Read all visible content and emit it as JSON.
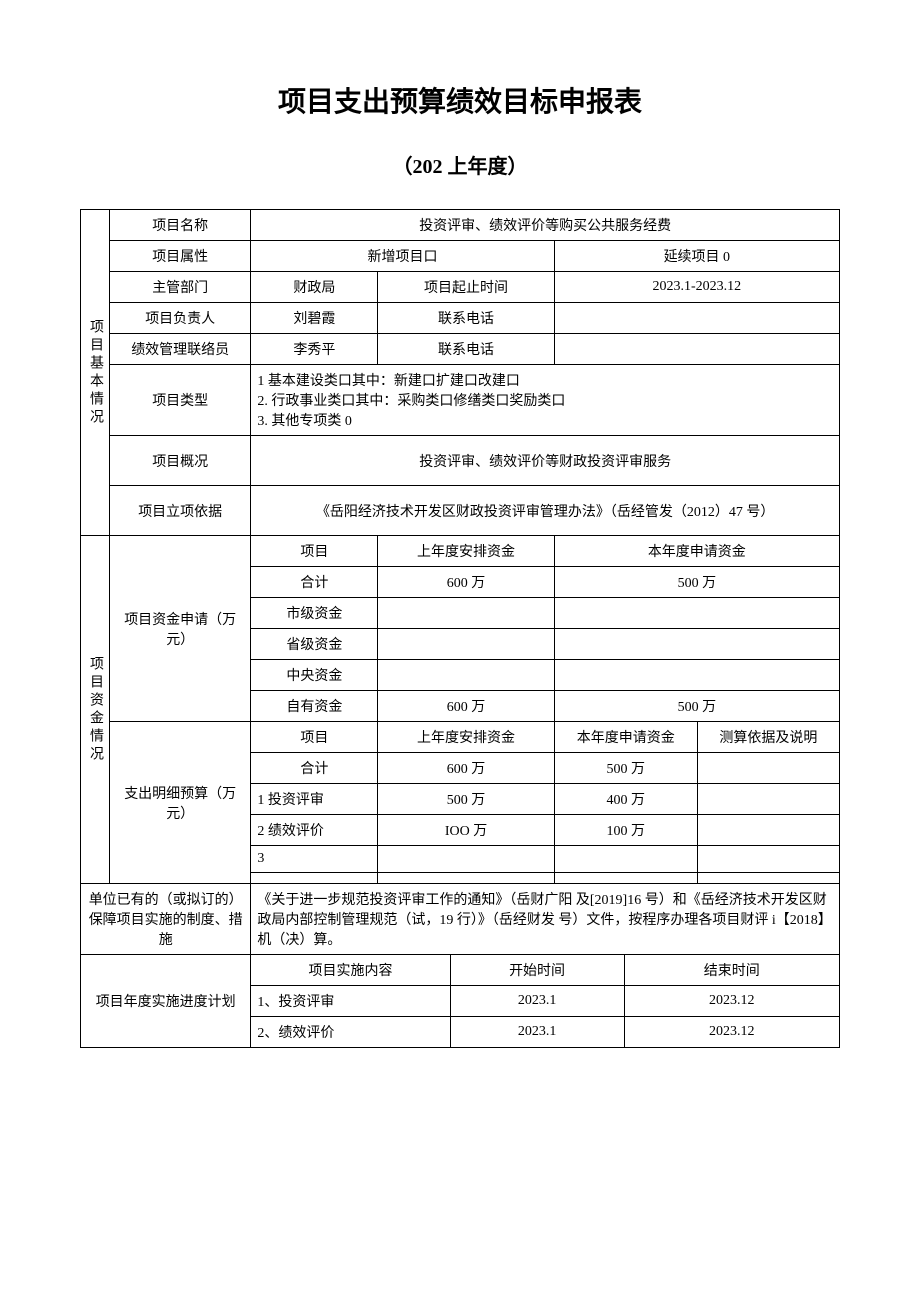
{
  "title": "项目支出预算绩效目标申报表",
  "subtitle": "（202 上年度）",
  "section1_label": "项目基本情况",
  "section2_label": "项目资金情况",
  "rows": {
    "proj_name_label": "项目名称",
    "proj_name": "投资评审、绩效评价等购买公共服务经费",
    "proj_attr_label": "项目属性",
    "proj_attr_new": "新增项目口",
    "proj_attr_cont": "延续项目 0",
    "dept_label": "主管部门",
    "dept": "财政局",
    "period_label": "项目起止时间",
    "period": "2023.1-2023.12",
    "leader_label": "项目负责人",
    "leader": "刘碧霞",
    "leader_phone_label": "联系电话",
    "leader_phone": "",
    "contact_label": "绩效管理联络员",
    "contact": "李秀平",
    "contact_phone_label": "联系电话",
    "contact_phone": "",
    "type_label": "项目类型",
    "type_text": "1 基本建设类口其中：新建口扩建口改建口\n2. 行政事业类口其中：采购类口修缮类口奖励类口\n3. 其他专项类 0",
    "overview_label": "项目概况",
    "overview": "投资评审、绩效评价等财政投资评审服务",
    "basis_label": "项目立项依据",
    "basis": "《岳阳经济技术开发区财政投资评审管理办法》（岳经管发（2012）47 号）",
    "fund_apply_label": "项目资金申请（万元）",
    "fund_item": "项目",
    "fund_last": "上年度安排资金",
    "fund_this": "本年度申请资金",
    "total_label": "合计",
    "total_last": "600 万",
    "total_this": "500 万",
    "city_label": "市级资金",
    "prov_label": "省级资金",
    "central_label": "中央资金",
    "own_label": "自有资金",
    "own_last": "600 万",
    "own_this": "500 万",
    "detail_label": "支出明细预算（万元）",
    "detail_item": "项目",
    "detail_last": "上年度安排资金",
    "detail_this": "本年度申请资金",
    "detail_note": "测算依据及说明",
    "d_total_last": "600 万",
    "d_total_this": "500 万",
    "d1_label": "1 投资评审",
    "d1_last": "500 万",
    "d1_this": "400 万",
    "d2_label": "2 绩效评价",
    "d2_last": "IOO 万",
    "d2_this": "100 万",
    "d3_label": "3",
    "measure_label": "单位已有的（或拟订的）保障项目实施的制度、措施",
    "measure_text": "《关于进一步规范投资评审工作的通知》（岳财广阳 及[2019]16 号）和《岳经济技术开发区财政局内部控制管理规范（试，19 行）》（岳经财发 号）文件，按程序办理各项目财评 i【2018】机（决）算。",
    "plan_label": "项目年度实施进度计划",
    "plan_content": "项目实施内容",
    "plan_start": "开始时间",
    "plan_end": "结束时间",
    "p1_name": "1、投资评审",
    "p1_start": "2023.1",
    "p1_end": "2023.12",
    "p2_name": "2、绩效评价",
    "p2_start": "2023.1",
    "p2_end": "2023.12"
  }
}
